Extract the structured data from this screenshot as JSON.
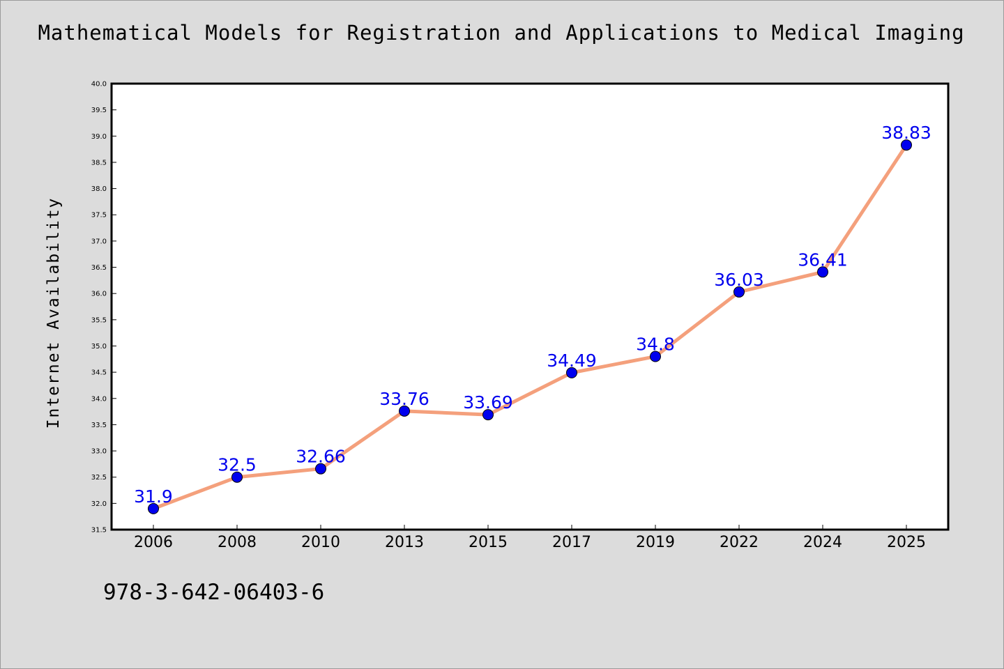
{
  "title": "Mathematical Models for Registration and Applications to Medical Imaging",
  "footer_text": "978-3-642-06403-6",
  "colors": {
    "background": "#dcdcdc",
    "plot_background": "#ffffff",
    "line": "#f4a07c",
    "marker": "#0000ee",
    "label": "#0000ee"
  },
  "chart_data": {
    "type": "line",
    "title": "Mathematical Models for Registration and Applications to Medical Imaging",
    "xlabel": "",
    "ylabel": "Internet Availability",
    "categories": [
      "2006",
      "2008",
      "2010",
      "2013",
      "2015",
      "2017",
      "2019",
      "2022",
      "2024",
      "2025"
    ],
    "series": [
      {
        "values": [
          31.9,
          32.5,
          32.66,
          33.76,
          33.69,
          34.49,
          34.8,
          36.03,
          36.41,
          38.83
        ],
        "labels": [
          "31.9",
          "32.5",
          "32.66",
          "33.76",
          "33.69",
          "34.49",
          "34.8",
          "36.03",
          "36.41",
          "38.83"
        ]
      }
    ],
    "ylim": [
      31.5,
      40.0
    ],
    "yticks": [
      "31.5",
      "32.0",
      "32.5",
      "33.0",
      "33.5",
      "34.0",
      "34.5",
      "35.0",
      "35.5",
      "36.0",
      "36.5",
      "37.0",
      "37.5",
      "38.0",
      "38.5",
      "39.0",
      "39.5",
      "40.0"
    ],
    "grid": false,
    "legend": "none"
  }
}
